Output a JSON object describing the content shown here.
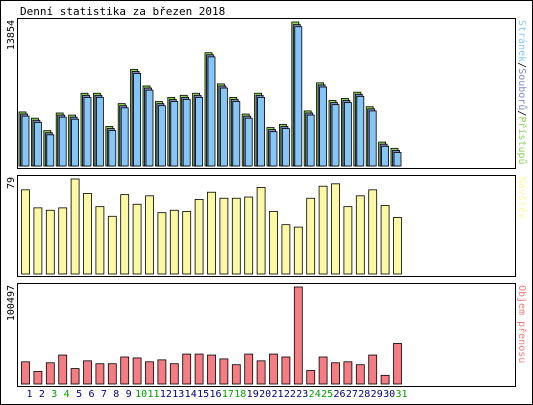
{
  "chart_data": {
    "type": "bar",
    "title": "Denní statistika za březen 2018",
    "categories": [
      "1",
      "2",
      "3",
      "4",
      "5",
      "6",
      "7",
      "8",
      "9",
      "10",
      "11",
      "12",
      "13",
      "14",
      "15",
      "16",
      "17",
      "18",
      "19",
      "20",
      "21",
      "22",
      "23",
      "24",
      "25",
      "26",
      "27",
      "28",
      "29",
      "30",
      "31"
    ],
    "weekend_days": [
      "3",
      "4",
      "10",
      "11",
      "17",
      "18",
      "24",
      "25",
      "31"
    ],
    "panels": [
      {
        "name": "top",
        "max_label": "13854",
        "ymax": 13854,
        "right_label": [
          "Stránek",
          "/",
          "Souborů",
          "/",
          "Přístupů"
        ],
        "series": [
          {
            "name": "Přístupů",
            "color": "#8fd35d",
            "values": [
              5200,
              4600,
              3400,
              5100,
              4900,
              7000,
              7000,
              3800,
              6000,
              9300,
              7700,
              6200,
              6600,
              6800,
              7000,
              10900,
              7900,
              6600,
              5000,
              7000,
              3700,
              4000,
              13854,
              5300,
              8000,
              6300,
              6500,
              7100,
              5700,
              2300,
              1700
            ]
          },
          {
            "name": "Souborů",
            "color": "#7f89c8",
            "values": [
              5000,
              4400,
              3200,
              4900,
              4700,
              6800,
              6800,
              3600,
              5800,
              9100,
              7500,
              6000,
              6400,
              6600,
              6800,
              10700,
              7700,
              6400,
              4800,
              6800,
              3500,
              3800,
              13600,
              5100,
              7800,
              6100,
              6300,
              6900,
              5500,
              2100,
              1500
            ]
          },
          {
            "name": "Stránek",
            "color": "#86c6f6",
            "values": [
              4800,
              4200,
              3000,
              4700,
              4500,
              6600,
              6600,
              3400,
              5600,
              8900,
              7300,
              5800,
              6200,
              6400,
              6600,
              10500,
              7500,
              6200,
              4600,
              6600,
              3300,
              3600,
              13400,
              4900,
              7600,
              5900,
              6100,
              6700,
              5300,
              1900,
              1300
            ]
          }
        ]
      },
      {
        "name": "middle",
        "max_label": "79",
        "ymax": 79,
        "right_label": [
          "Návštěv"
        ],
        "series": [
          {
            "name": "Návštěv",
            "color": "#fbf9a4",
            "values": [
              70,
              55,
              53,
              55,
              79,
              67,
              56,
              48,
              66,
              58,
              65,
              51,
              53,
              52,
              62,
              68,
              63,
              63,
              64,
              72,
              52,
              41,
              39,
              63,
              73,
              75,
              56,
              65,
              70,
              57,
              47
            ]
          }
        ]
      },
      {
        "name": "bottom",
        "max_label": "100497",
        "ymax": 100497,
        "right_label": [
          "Objem přenosu"
        ],
        "series": [
          {
            "name": "Objem přenosu",
            "color": "#f37d83",
            "values": [
              23000,
              13000,
              22000,
              30000,
              16000,
              24000,
              21000,
              21000,
              28000,
              27000,
              23000,
              25000,
              21000,
              31000,
              31000,
              30000,
              26000,
              20000,
              31000,
              24000,
              31000,
              28000,
              100497,
              14000,
              28000,
              22000,
              23000,
              20000,
              30000,
              9000,
              42000
            ]
          }
        ]
      }
    ]
  },
  "colors": {
    "weekday_label": "#000080",
    "weekend_label": "#00a000",
    "frame": "#000000",
    "label_stranek": "#86c6f6",
    "label_separator": "#000000",
    "label_souboru": "#7f89c8",
    "label_pristupu": "#8fd35d",
    "label_navstev": "#fbf9a4",
    "label_objem": "#f37d83"
  }
}
